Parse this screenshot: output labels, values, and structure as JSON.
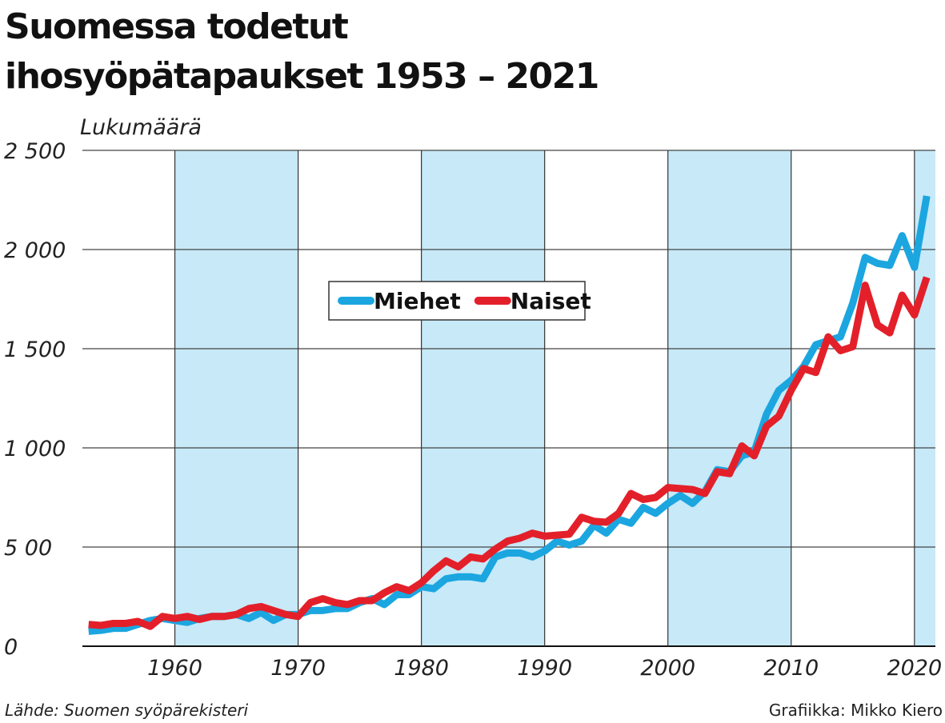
{
  "chart_data": {
    "type": "line",
    "title": [
      "Suomessa todetut",
      "ihosyöpätapaukset 1953 – 2021"
    ],
    "y_label": "Lukumäärä",
    "source": "Lähde: Suomen syöpärekisteri",
    "credit": "Grafiikka: Mikko Kiero",
    "x": [
      1953,
      1954,
      1955,
      1956,
      1957,
      1958,
      1959,
      1960,
      1961,
      1962,
      1963,
      1964,
      1965,
      1966,
      1967,
      1968,
      1969,
      1970,
      1971,
      1972,
      1973,
      1974,
      1975,
      1976,
      1977,
      1978,
      1979,
      1980,
      1981,
      1982,
      1983,
      1984,
      1985,
      1986,
      1987,
      1988,
      1989,
      1990,
      1991,
      1992,
      1993,
      1994,
      1995,
      1996,
      1997,
      1998,
      1999,
      2000,
      2001,
      2002,
      2003,
      2004,
      2005,
      2006,
      2007,
      2008,
      2009,
      2010,
      2011,
      2012,
      2013,
      2014,
      2015,
      2016,
      2017,
      2018,
      2019,
      2020,
      2021
    ],
    "series": [
      {
        "name": "Miehet",
        "color": "#1ba6e0",
        "values": [
          75,
          80,
          90,
          90,
          110,
          130,
          140,
          130,
          120,
          140,
          150,
          150,
          160,
          140,
          170,
          130,
          160,
          160,
          180,
          180,
          190,
          190,
          220,
          240,
          210,
          260,
          260,
          300,
          290,
          340,
          350,
          350,
          340,
          450,
          470,
          470,
          450,
          480,
          530,
          510,
          530,
          610,
          570,
          640,
          620,
          700,
          670,
          720,
          760,
          720,
          780,
          890,
          880,
          960,
          980,
          1170,
          1290,
          1340,
          1410,
          1520,
          1540,
          1560,
          1730,
          1960,
          1930,
          1920,
          2070,
          1910,
          2270
        ]
      },
      {
        "name": "Naiset",
        "color": "#e3202a",
        "values": [
          110,
          105,
          115,
          115,
          125,
          100,
          150,
          140,
          150,
          135,
          150,
          150,
          160,
          190,
          200,
          180,
          160,
          150,
          220,
          240,
          220,
          210,
          230,
          230,
          270,
          300,
          280,
          320,
          380,
          430,
          400,
          450,
          440,
          490,
          530,
          545,
          570,
          555,
          560,
          565,
          650,
          630,
          625,
          670,
          770,
          740,
          750,
          800,
          795,
          790,
          770,
          880,
          870,
          1010,
          960,
          1110,
          1160,
          1290,
          1400,
          1380,
          1560,
          1490,
          1510,
          1820,
          1620,
          1580,
          1770,
          1670,
          1860
        ]
      }
    ],
    "xlim": [
      1952.5,
      2021.7
    ],
    "xticks": [
      1960,
      1970,
      1980,
      1990,
      2000,
      2010,
      2020
    ],
    "ylim": [
      0,
      2500
    ],
    "yticks": [
      0,
      {
        "value": 500,
        "label": "5 00"
      },
      {
        "value": 1000,
        "label": "1 000"
      },
      {
        "value": 1500,
        "label": "1 500"
      },
      {
        "value": 2000,
        "label": "2 000"
      },
      {
        "value": 2500,
        "label": "2 500"
      }
    ],
    "shaded_bands": [
      [
        1960,
        1970
      ],
      [
        1980,
        1990
      ],
      [
        2000,
        2010
      ],
      [
        2020,
        2021.7
      ]
    ],
    "band_color": "#c7e9f8",
    "grid": true,
    "legend": "center"
  }
}
